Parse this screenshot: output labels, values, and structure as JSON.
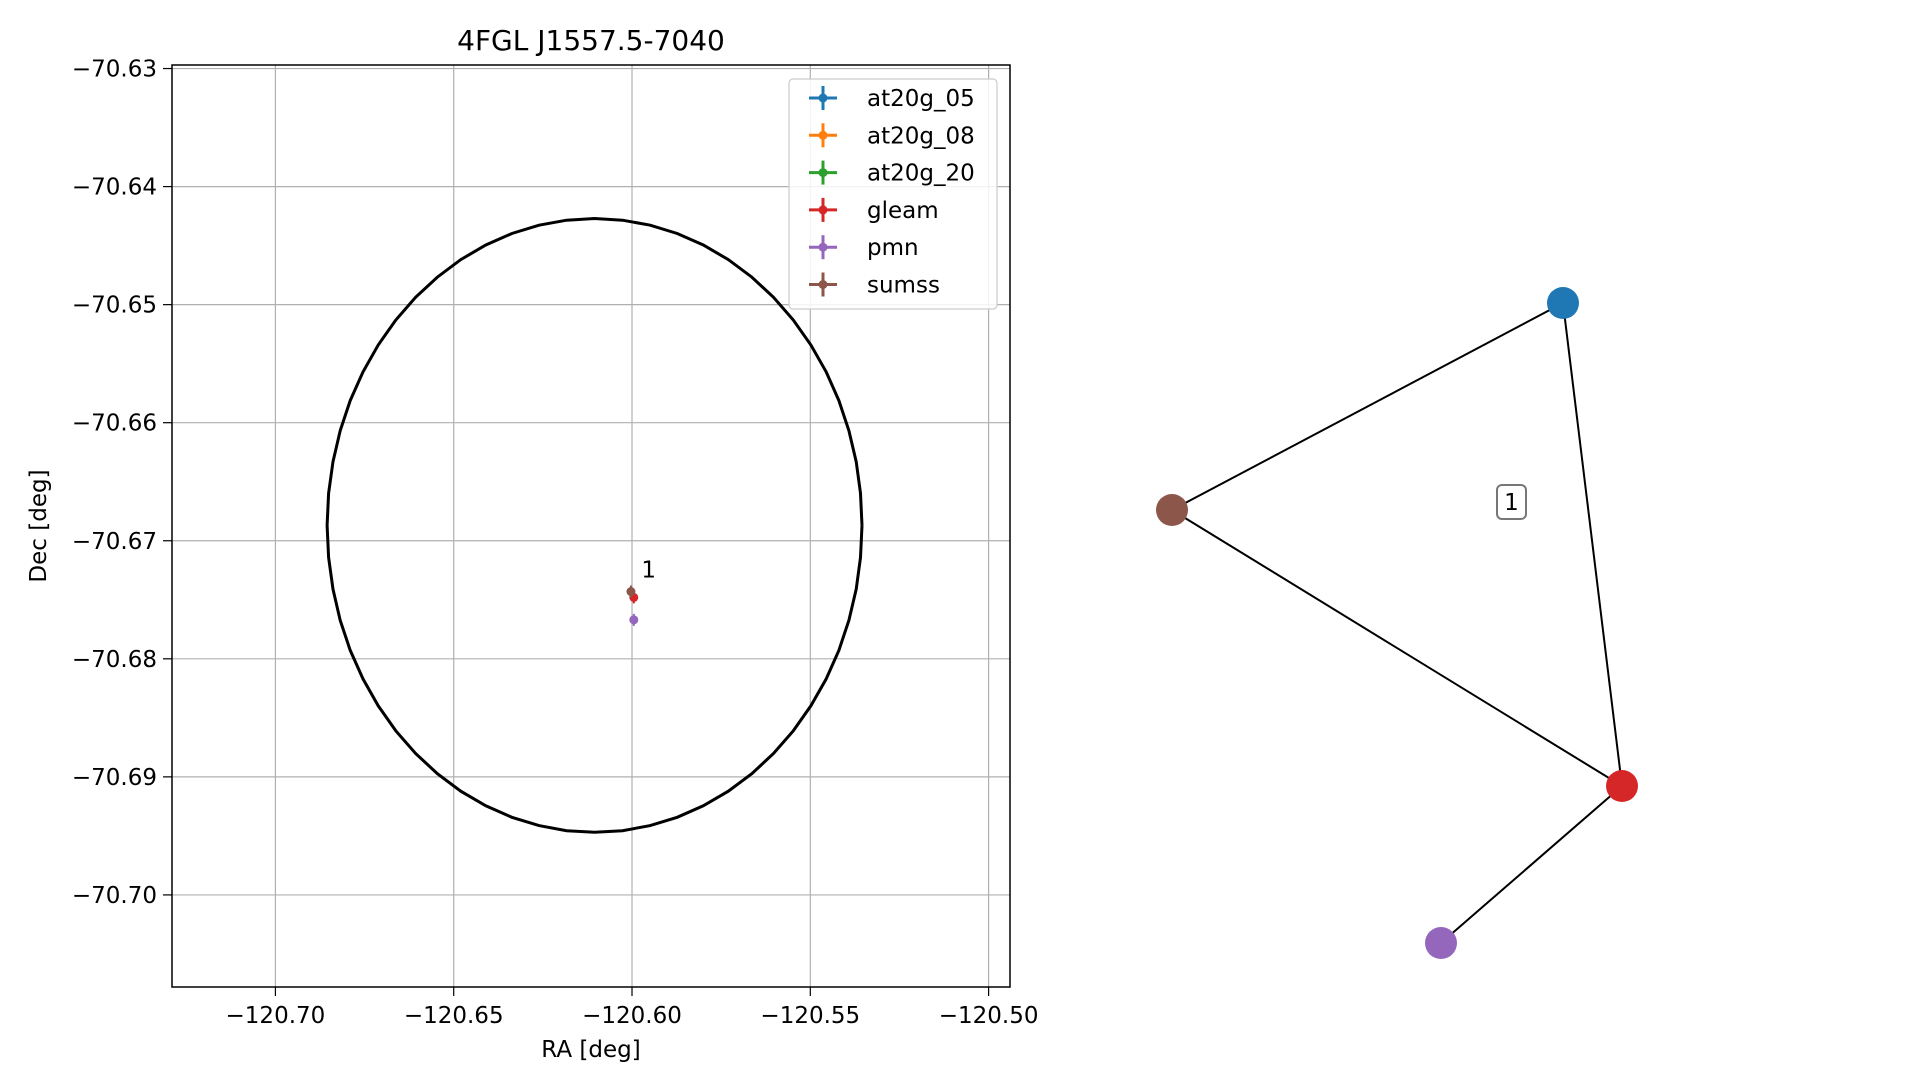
{
  "chart_data": [
    {
      "type": "scatter",
      "title": "4FGL J1557.5-7040",
      "xlabel": "RA [deg]",
      "ylabel": "Dec [deg]",
      "xlim": [
        -120.729,
        -120.494
      ],
      "ylim": [
        -70.7078,
        -70.6297
      ],
      "x_ticks": [
        -120.7,
        -120.65,
        -120.6,
        -120.55,
        -120.5
      ],
      "x_tick_labels": [
        "−120.70",
        "−120.65",
        "−120.60",
        "−120.55",
        "−120.50"
      ],
      "y_ticks": [
        -70.63,
        -70.64,
        -70.65,
        -70.66,
        -70.67,
        -70.68,
        -70.69,
        -70.7
      ],
      "y_tick_labels": [
        "−70.63",
        "−70.64",
        "−70.65",
        "−70.66",
        "−70.67",
        "−70.68",
        "−70.69",
        "−70.70"
      ],
      "grid": true,
      "legend_position": "upper right",
      "ellipse": {
        "center": [
          -120.6105,
          -70.6687
        ],
        "semi_axis_ra": 0.075,
        "semi_axis_dec": 0.026,
        "color": "#000000"
      },
      "series": [
        {
          "name": "at20g_05",
          "color": "#1f77b4",
          "points": []
        },
        {
          "name": "at20g_08",
          "color": "#ff7f0e",
          "points": []
        },
        {
          "name": "at20g_20",
          "color": "#2ca02c",
          "points": []
        },
        {
          "name": "gleam",
          "color": "#d62728",
          "points": [
            [
              -120.5995,
              -70.6748
            ]
          ]
        },
        {
          "name": "pmn",
          "color": "#9467bd",
          "points": [
            [
              -120.5995,
              -70.6767
            ]
          ]
        },
        {
          "name": "sumss",
          "color": "#8c564b",
          "points": [
            [
              -120.6003,
              -70.6743
            ]
          ]
        }
      ],
      "annotations": [
        {
          "text": "1",
          "x": -120.5985,
          "y": -70.6733
        }
      ]
    },
    {
      "type": "network",
      "nodes": [
        {
          "id": "at20g",
          "color": "#1f77b4"
        },
        {
          "id": "sumss",
          "color": "#8c564b"
        },
        {
          "id": "gleam",
          "color": "#d62728"
        },
        {
          "id": "pmn",
          "color": "#9467bd"
        }
      ],
      "edges": [
        [
          "at20g",
          "sumss"
        ],
        [
          "at20g",
          "gleam"
        ],
        [
          "sumss",
          "gleam"
        ],
        [
          "gleam",
          "pmn"
        ]
      ],
      "cluster_label": "1"
    }
  ]
}
